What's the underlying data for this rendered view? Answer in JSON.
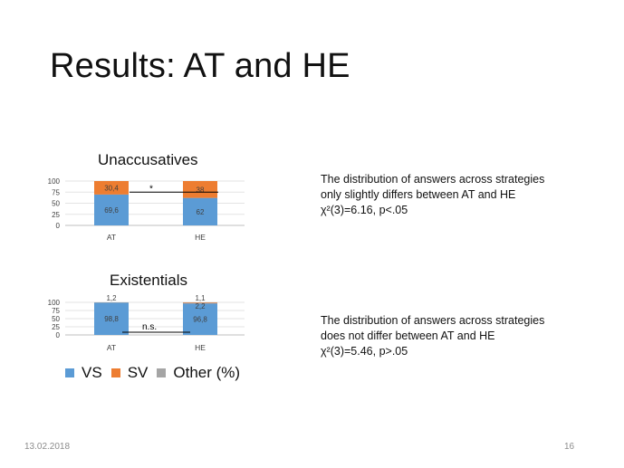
{
  "slide": {
    "title": "Results: AT and HE",
    "date": "13.02.2018",
    "page_number": "16"
  },
  "legend": {
    "items": [
      {
        "label": "VS",
        "color": "#5b9bd5"
      },
      {
        "label": "SV",
        "color": "#ed7d31"
      },
      {
        "label": "Other (%)",
        "color": "#a5a5a5"
      }
    ]
  },
  "descriptions": {
    "unaccusatives": [
      "The distribution of answers across strategies",
      "only slightly differs between AT and HE",
      "χ²(3)=6.16, p<.05"
    ],
    "existentials": [
      "The distribution of answers across strategies",
      "does not differ between AT and HE",
      "χ²(3)=5.46, p>.05"
    ]
  },
  "chart_data": [
    {
      "type": "bar",
      "stacked": true,
      "title": "Unaccusatives",
      "categories": [
        "AT",
        "HE"
      ],
      "yticks": [
        0,
        25,
        50,
        75,
        100
      ],
      "ylim": [
        0,
        100
      ],
      "grid": true,
      "series": [
        {
          "name": "VS",
          "color": "#5b9bd5",
          "values": [
            69.6,
            62
          ],
          "labels": [
            "69,6",
            "62"
          ]
        },
        {
          "name": "SV",
          "color": "#ed7d31",
          "values": [
            30.4,
            38
          ],
          "labels": [
            "30,4",
            "38"
          ]
        },
        {
          "name": "Other (%)",
          "color": "#a5a5a5",
          "values": [
            0,
            0
          ],
          "labels": [
            "",
            ""
          ]
        }
      ],
      "annotation": "*"
    },
    {
      "type": "bar",
      "stacked": true,
      "title": "Existentials",
      "categories": [
        "AT",
        "HE"
      ],
      "yticks": [
        0,
        25,
        50,
        75,
        100
      ],
      "ylim": [
        0,
        100
      ],
      "grid": true,
      "series": [
        {
          "name": "VS",
          "color": "#5b9bd5",
          "values": [
            98.8,
            96.8
          ],
          "labels": [
            "98,8",
            "96,8"
          ]
        },
        {
          "name": "SV",
          "color": "#ed7d31",
          "values": [
            0,
            2.2
          ],
          "labels": [
            "",
            "2,2"
          ]
        },
        {
          "name": "Other (%)",
          "color": "#a5a5a5",
          "values": [
            1.2,
            1.1
          ],
          "labels": [
            "1,2",
            "1,1"
          ]
        }
      ],
      "annotation": "n.s."
    }
  ]
}
